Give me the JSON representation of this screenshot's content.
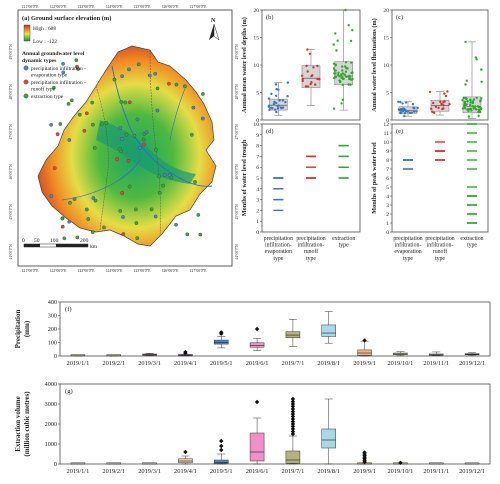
{
  "map": {
    "title": "(a) Ground surface elevation (m)",
    "legend_high": "High : 688",
    "legend_low": "Low : -122",
    "types_title_1": "Annual groundwater level",
    "types_title_2": "dynamic types",
    "types": [
      {
        "label_1": "precipitation infiltration -",
        "label_2": "evaporation type",
        "color": "#4a86c5"
      },
      {
        "label_1": "precipitation infiltration -",
        "label_2": "runoff type",
        "color": "#e0443c"
      },
      {
        "label_1": "extraction type",
        "label_2": "",
        "color": "#3aa33a"
      }
    ],
    "north": "N",
    "scale_ticks": [
      "0",
      "50",
      "100",
      "200"
    ],
    "scale_unit": "km",
    "lon_ticks": [
      "121°00'0\"E",
      "122°00'0\"E",
      "123°00'0\"E",
      "124°00'0\"E",
      "125°00'0\"E",
      "126°00'0\"E",
      "127°00'0\"E"
    ],
    "lat_ticks": [
      "49°00'0\"N",
      "48°00'0\"N",
      "47°00'0\"N",
      "46°00'0\"N",
      "45°00'0\"N",
      "44°00'0\"N"
    ]
  },
  "chart_data": [
    {
      "id": "b",
      "type": "box+scatter",
      "panel_label": "(b)",
      "ylabel": "Annual mean water level depths (m)",
      "ylim": [
        0,
        20
      ],
      "yticks": [
        0,
        5,
        10,
        15,
        20
      ],
      "categories": [
        "precipitation infiltration-evaporation type",
        "precipitation infiltration-runoff type",
        "extraction type"
      ],
      "series": [
        {
          "q1": 1.8,
          "median": 2.7,
          "q3": 3.8,
          "min": 0.8,
          "max": 6.8,
          "color": "#3d72c4"
        },
        {
          "q1": 5.9,
          "median": 7.6,
          "q3": 9.9,
          "min": 2.6,
          "max": 12.8,
          "color": "#d9322b"
        },
        {
          "q1": 6.4,
          "median": 8.0,
          "q3": 10.6,
          "min": 1.8,
          "max": 20.0,
          "color": "#2fa62f"
        }
      ]
    },
    {
      "id": "c",
      "type": "box+scatter",
      "panel_label": "(c)",
      "ylabel": "Annual water level fluctuations (m)",
      "ylim": [
        0,
        20
      ],
      "yticks": [
        0,
        5,
        10,
        15,
        20
      ],
      "categories": [
        "precipitation infiltration-evaporation type",
        "precipitation infiltration-runoff type",
        "extraction type"
      ],
      "series": [
        {
          "q1": 1.2,
          "median": 1.7,
          "q3": 2.4,
          "min": 0.7,
          "max": 3.3,
          "color": "#3d72c4"
        },
        {
          "q1": 1.6,
          "median": 2.6,
          "q3": 3.6,
          "min": 0.9,
          "max": 5.2,
          "color": "#d9322b"
        },
        {
          "q1": 1.3,
          "median": 2.5,
          "q3": 4.2,
          "min": 0.3,
          "max": 14.2,
          "color": "#2fa62f"
        }
      ]
    },
    {
      "id": "d",
      "type": "strip",
      "panel_label": "(d)",
      "ylabel": "Months of water level trough",
      "ylim": [
        0,
        10
      ],
      "yticks": [
        0,
        1,
        2,
        3,
        4,
        5,
        6,
        7,
        8,
        9,
        10
      ],
      "categories": [
        "precipitation infiltration-evaporation type",
        "precipitation infiltration-runoff type",
        "extraction type"
      ],
      "xlabels": [
        [
          "precipitation",
          "infiltration-",
          "evaporation",
          "type"
        ],
        [
          "precipitation",
          "infiltration-",
          "runoff",
          "type"
        ],
        [
          "extraction",
          "type"
        ]
      ],
      "series": [
        {
          "values": [
            2,
            3,
            3,
            4,
            4,
            5,
            5,
            5
          ],
          "color": "#3d72c4"
        },
        {
          "values": [
            5,
            5,
            5,
            6,
            7,
            7,
            7
          ],
          "color": "#d9322b"
        },
        {
          "values": [
            5,
            5,
            6,
            6,
            6,
            7,
            7,
            8,
            8
          ],
          "color": "#2fa62f"
        }
      ]
    },
    {
      "id": "e",
      "type": "strip",
      "panel_label": "(e)",
      "ylabel": "Months of peak water level",
      "ylim": [
        0,
        12
      ],
      "yticks": [
        0,
        1,
        2,
        3,
        4,
        5,
        6,
        7,
        8,
        9,
        10,
        11,
        12
      ],
      "categories": [
        "precipitation infiltration-evaporation type",
        "precipitation infiltration-runoff type",
        "extraction type"
      ],
      "xlabels": [
        [
          "precipitation",
          "infiltration-",
          "evaporation",
          "type"
        ],
        [
          "precipitation",
          "infiltration-",
          "runoff",
          "type"
        ],
        [
          "extraction",
          "type"
        ]
      ],
      "series": [
        {
          "values": [
            7,
            7,
            8,
            8,
            8,
            8
          ],
          "color": "#3d72c4"
        },
        {
          "values": [
            8,
            8,
            8,
            9,
            9,
            9,
            9,
            10
          ],
          "color": "#d9322b"
        },
        {
          "values": [
            1,
            1,
            1,
            2,
            2,
            3,
            3,
            4,
            4,
            4,
            5,
            7,
            8,
            9,
            10,
            11,
            12,
            12
          ],
          "color": "#2fa62f"
        }
      ]
    },
    {
      "id": "f",
      "type": "box",
      "panel_label": "(f)",
      "ylabel": [
        "Precipitation",
        "(mm)"
      ],
      "ylim": [
        0,
        400
      ],
      "yticks": [
        0,
        100,
        200,
        300,
        400
      ],
      "categories": [
        "2019/1/1",
        "2019/2/1",
        "2019/3/1",
        "2019/4/1",
        "2019/5/1",
        "2019/6/1",
        "2019/7/1",
        "2019/8/1",
        "2019/9/1",
        "2019/10/1",
        "2019/11/1",
        "2019/12/1"
      ],
      "series": [
        {
          "min": 0,
          "q1": 1,
          "median": 2,
          "q3": 3,
          "max": 5,
          "outliers": [],
          "color": "#f3d1a8"
        },
        {
          "min": 0,
          "q1": 1,
          "median": 2,
          "q3": 3,
          "max": 4,
          "outliers": [],
          "color": "#f3d1a8"
        },
        {
          "min": 3,
          "q1": 6,
          "median": 9,
          "q3": 13,
          "max": 20,
          "outliers": [],
          "color": "#c57fc5"
        },
        {
          "min": 1,
          "q1": 3,
          "median": 5,
          "q3": 8,
          "max": 13,
          "outliers": [
            20,
            30
          ],
          "color": "#c57fc5"
        },
        {
          "min": 60,
          "q1": 88,
          "median": 100,
          "q3": 118,
          "max": 145,
          "outliers": [
            165,
            175
          ],
          "color": "#4b87c7"
        },
        {
          "min": 40,
          "q1": 65,
          "median": 78,
          "q3": 98,
          "max": 130,
          "outliers": [
            200
          ],
          "color": "#f08fc8"
        },
        {
          "min": 70,
          "q1": 135,
          "median": 155,
          "q3": 180,
          "max": 272,
          "outliers": [],
          "color": "#b5b27c"
        },
        {
          "min": 95,
          "q1": 145,
          "median": 170,
          "q3": 230,
          "max": 330,
          "outliers": [],
          "color": "#a9d8e8"
        },
        {
          "min": 0,
          "q1": 5,
          "median": 22,
          "q3": 45,
          "max": 110,
          "outliers": [
            115
          ],
          "color": "#f5b48c"
        },
        {
          "min": 3,
          "q1": 10,
          "median": 15,
          "q3": 22,
          "max": 32,
          "outliers": [],
          "color": "#cfe4b0"
        },
        {
          "min": 2,
          "q1": 6,
          "median": 9,
          "q3": 15,
          "max": 30,
          "outliers": [],
          "color": "#ead5ee"
        },
        {
          "min": 3,
          "q1": 9,
          "median": 13,
          "q3": 18,
          "max": 24,
          "outliers": [],
          "color": "#f2e3a4"
        }
      ]
    },
    {
      "id": "g",
      "type": "box",
      "panel_label": "(g)",
      "ylabel": [
        "Extraction volume",
        "(million cubic metres)"
      ],
      "ylim": [
        0,
        4000
      ],
      "yticks": [
        0,
        1000,
        2000,
        3000,
        4000
      ],
      "categories": [
        "2019/1/1",
        "2019/2/1",
        "2019/3/1",
        "2019/4/1",
        "2019/5/1",
        "2019/6/1",
        "2019/7/1",
        "2019/8/1",
        "2019/9/1",
        "2019/10/1",
        "2019/11/1",
        "2019/12/1"
      ],
      "series": [
        {
          "min": 0,
          "q1": 0,
          "median": 0,
          "q3": 0,
          "max": 0,
          "outliers": [],
          "color": "#dddddd"
        },
        {
          "min": 0,
          "q1": 0,
          "median": 0,
          "q3": 0,
          "max": 0,
          "outliers": [],
          "color": "#dddddd"
        },
        {
          "min": 0,
          "q1": 0,
          "median": 0,
          "q3": 0,
          "max": 0,
          "outliers": [],
          "color": "#dddddd"
        },
        {
          "min": 0,
          "q1": 60,
          "median": 150,
          "q3": 260,
          "max": 400,
          "outliers": [
            600
          ],
          "color": "#f3d1a8"
        },
        {
          "min": 0,
          "q1": 30,
          "median": 80,
          "q3": 200,
          "max": 500,
          "outliers": [
            700,
            900,
            1150
          ],
          "color": "#4b87c7"
        },
        {
          "min": 0,
          "q1": 150,
          "median": 600,
          "q3": 1550,
          "max": 2300,
          "outliers": [
            3100
          ],
          "color": "#f08fc8"
        },
        {
          "min": 0,
          "q1": 40,
          "median": 200,
          "q3": 650,
          "max": 1400,
          "outliers": [
            1500,
            1620,
            1750,
            1880,
            2000,
            2120,
            2250,
            2380,
            2500,
            2620,
            2750,
            2880,
            3000,
            3120,
            3250
          ],
          "color": "#b5b27c"
        },
        {
          "min": 0,
          "q1": 800,
          "median": 1200,
          "q3": 1750,
          "max": 3250,
          "outliers": [],
          "color": "#a9d8e8"
        },
        {
          "min": 0,
          "q1": 0,
          "median": 0,
          "q3": 0,
          "max": 0,
          "outliers": [
            100,
            180,
            260,
            340,
            420,
            500,
            580
          ],
          "color": "#f5b48c"
        },
        {
          "min": 0,
          "q1": 0,
          "median": 0,
          "q3": 0,
          "max": 0,
          "outliers": [
            60
          ],
          "color": "#cfe4b0"
        },
        {
          "min": 0,
          "q1": 0,
          "median": 0,
          "q3": 0,
          "max": 0,
          "outliers": [],
          "color": "#dddddd"
        },
        {
          "min": 0,
          "q1": 0,
          "median": 0,
          "q3": 0,
          "max": 0,
          "outliers": [],
          "color": "#dddddd"
        }
      ]
    }
  ]
}
